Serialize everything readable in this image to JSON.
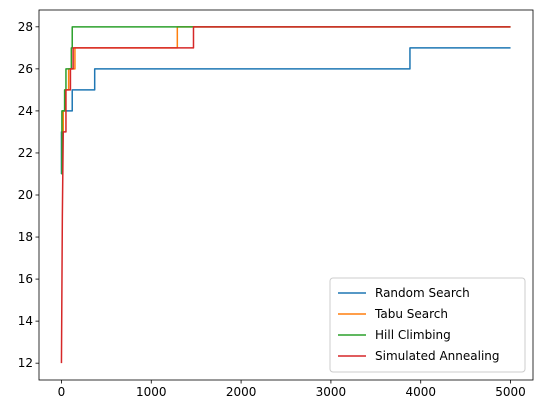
{
  "chart_data": {
    "type": "line",
    "title": "",
    "xlabel": "",
    "ylabel": "",
    "xlim": [
      -250,
      5250
    ],
    "ylim": [
      11.2,
      28.8
    ],
    "xticks": [
      0,
      1000,
      2000,
      3000,
      4000,
      5000
    ],
    "yticks": [
      12,
      14,
      16,
      18,
      20,
      22,
      24,
      26,
      28
    ],
    "grid": false,
    "legend_position": "lower-right",
    "series": [
      {
        "name": "Random Search",
        "color": "#1f77b4",
        "points": [
          [
            0,
            21
          ],
          [
            0,
            23
          ],
          [
            10,
            23
          ],
          [
            10,
            24
          ],
          [
            120,
            24
          ],
          [
            120,
            25
          ],
          [
            370,
            25
          ],
          [
            370,
            26
          ],
          [
            3880,
            26
          ],
          [
            3880,
            27
          ],
          [
            5000,
            27
          ]
        ]
      },
      {
        "name": "Tabu Search",
        "color": "#ff7f0e",
        "points": [
          [
            0,
            23
          ],
          [
            20,
            23
          ],
          [
            20,
            24
          ],
          [
            40,
            24
          ],
          [
            40,
            25
          ],
          [
            80,
            25
          ],
          [
            80,
            26
          ],
          [
            150,
            26
          ],
          [
            150,
            27
          ],
          [
            1290,
            27
          ],
          [
            1290,
            28
          ],
          [
            5000,
            28
          ]
        ]
      },
      {
        "name": "Hill Climbing",
        "color": "#2ca02c",
        "points": [
          [
            0,
            21
          ],
          [
            5,
            21
          ],
          [
            5,
            24
          ],
          [
            35,
            24
          ],
          [
            35,
            25
          ],
          [
            50,
            25
          ],
          [
            50,
            26
          ],
          [
            110,
            26
          ],
          [
            110,
            27
          ],
          [
            120,
            27
          ],
          [
            120,
            28
          ],
          [
            5000,
            28
          ]
        ]
      },
      {
        "name": "Simulated Annealing",
        "color": "#d62728",
        "points": [
          [
            0,
            12
          ],
          [
            10,
            19
          ],
          [
            20,
            23
          ],
          [
            50,
            23
          ],
          [
            50,
            25
          ],
          [
            100,
            25
          ],
          [
            100,
            26
          ],
          [
            130,
            26
          ],
          [
            130,
            27
          ],
          [
            1470,
            27
          ],
          [
            1470,
            28
          ],
          [
            5000,
            28
          ]
        ]
      }
    ]
  }
}
